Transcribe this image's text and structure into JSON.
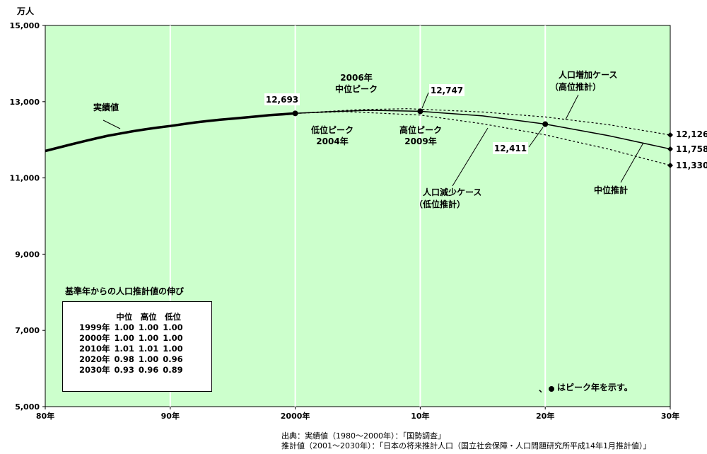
{
  "chart_data": {
    "type": "line",
    "y_unit": "万人",
    "ylim": [
      5000,
      15000
    ],
    "y_ticks": [
      "5,000",
      "7,000",
      "9,000",
      "11,000",
      "13,000",
      "15,000"
    ],
    "x_ticks": [
      "80年",
      "90年",
      "2000年",
      "10年",
      "20年",
      "30年"
    ],
    "grid": "vertical",
    "background_color": "#ccffcc",
    "series": [
      {
        "name": "実績値",
        "style": "solid-thick",
        "points": [
          [
            1980,
            11706
          ],
          [
            1981,
            11790
          ],
          [
            1982,
            11873
          ],
          [
            1983,
            11954
          ],
          [
            1984,
            12031
          ],
          [
            1985,
            12105
          ],
          [
            1986,
            12166
          ],
          [
            1987,
            12224
          ],
          [
            1988,
            12275
          ],
          [
            1989,
            12321
          ],
          [
            1990,
            12361
          ],
          [
            1991,
            12410
          ],
          [
            1992,
            12457
          ],
          [
            1993,
            12494
          ],
          [
            1994,
            12527
          ],
          [
            1995,
            12557
          ],
          [
            1996,
            12586
          ],
          [
            1997,
            12616
          ],
          [
            1998,
            12649
          ],
          [
            1999,
            12669
          ],
          [
            2000,
            12693
          ]
        ]
      },
      {
        "name": "中位推計",
        "style": "solid",
        "points": [
          [
            2000,
            12693
          ],
          [
            2003,
            12740
          ],
          [
            2006,
            12774
          ],
          [
            2010,
            12747
          ],
          [
            2015,
            12627
          ],
          [
            2020,
            12411
          ],
          [
            2025,
            12114
          ],
          [
            2030,
            11758
          ]
        ]
      },
      {
        "name": "人口増加ケース（高位推計）",
        "style": "dotted",
        "points": [
          [
            2000,
            12693
          ],
          [
            2005,
            12790
          ],
          [
            2009,
            12816
          ],
          [
            2015,
            12730
          ],
          [
            2020,
            12600
          ],
          [
            2025,
            12400
          ],
          [
            2030,
            12126
          ]
        ]
      },
      {
        "name": "人口減少ケース（低位推計）",
        "style": "dotted",
        "points": [
          [
            2000,
            12693
          ],
          [
            2004,
            12740
          ],
          [
            2010,
            12650
          ],
          [
            2015,
            12420
          ],
          [
            2020,
            12130
          ],
          [
            2025,
            11760
          ],
          [
            2030,
            11330
          ]
        ]
      }
    ],
    "data_labels": [
      {
        "text": "12,693",
        "x": 2000,
        "y": 12693
      },
      {
        "text": "12,747",
        "x": 2010,
        "y": 12747
      },
      {
        "text": "12,411",
        "x": 2020,
        "y": 12411
      },
      {
        "text": "12,126",
        "x": 2030,
        "y": 12126
      },
      {
        "text": "11,758",
        "x": 2030,
        "y": 11758
      },
      {
        "text": "11,330",
        "x": 2030,
        "y": 11330
      }
    ],
    "annotations": {
      "jisseki": "実績値",
      "chui_peak": [
        "2006年",
        "中位ピーク"
      ],
      "tei_peak": [
        "低位ピーク",
        "2004年"
      ],
      "koi_peak": [
        "高位ピーク",
        "2009年"
      ],
      "high_case": [
        "人口増加ケース",
        "（高位推計）"
      ],
      "low_case": [
        "人口減少ケース",
        "（低位推計）"
      ],
      "chui_suikei": "中位推計",
      "peak_note_prefix": "、",
      "peak_note": "はピーク年を示す。"
    },
    "growth_table": {
      "title": "基準年からの人口推計値の伸び",
      "headers": [
        "",
        "中位",
        "高位",
        "低位"
      ],
      "rows": [
        [
          "1999年",
          "1.00",
          "1.00",
          "1.00"
        ],
        [
          "2000年",
          "1.00",
          "1.00",
          "1.00"
        ],
        [
          "2010年",
          "1.01",
          "1.01",
          "1.00"
        ],
        [
          "2020年",
          "0.98",
          "1.00",
          "0.96"
        ],
        [
          "2030年",
          "0.93",
          "0.96",
          "0.89"
        ]
      ]
    }
  },
  "source": {
    "line1": "出典：実績値（1980～2000年）：「国勢調査」",
    "line2": "推計値（2001～2030年）：「日本の将来推計人口（国立社会保障・人口問題研究所平成14年1月推計値）」"
  }
}
